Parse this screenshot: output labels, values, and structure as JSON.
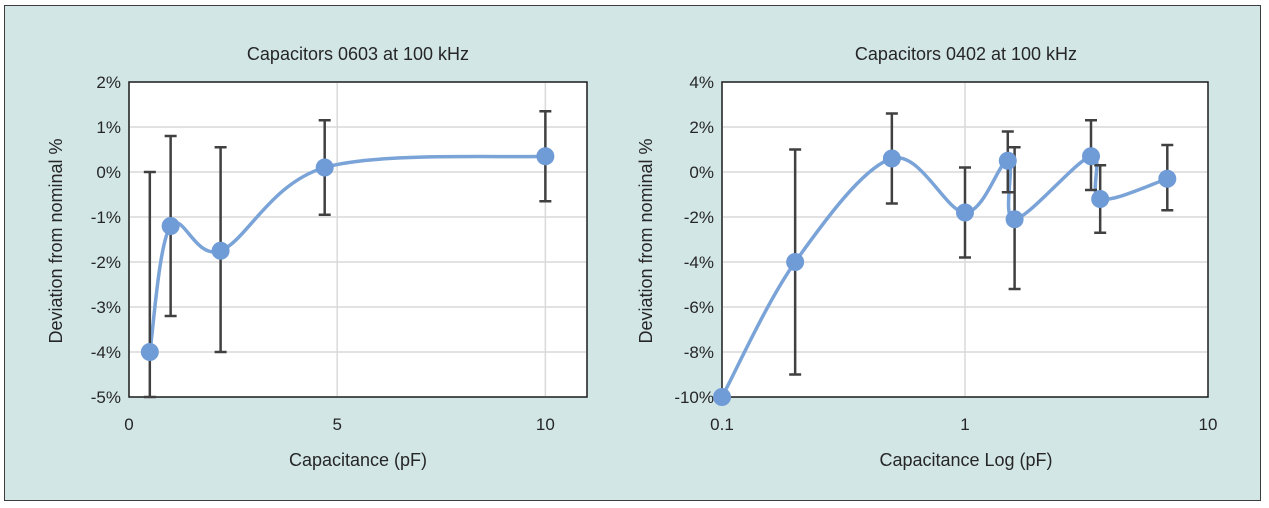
{
  "chart_data": [
    {
      "type": "scatter",
      "title": "Capacitors 0603 at 100 kHz",
      "xlabel": "Capacitance (pF)",
      "ylabel": "Deviation from nominal %",
      "xlim": [
        0,
        11
      ],
      "ylim": [
        -5,
        2
      ],
      "x_ticks": [
        0,
        5,
        10
      ],
      "y_ticks": [
        -5,
        -4,
        -3,
        -2,
        -1,
        0,
        1,
        2
      ],
      "x_scale": "linear",
      "grid": true,
      "smooth_line": true,
      "series": [
        {
          "x": [
            0.5,
            1.0,
            2.2,
            4.7,
            10.0
          ],
          "y": [
            -4.0,
            -1.2,
            -1.75,
            0.1,
            0.35
          ],
          "err_low": [
            -5.0,
            -3.2,
            -4.0,
            -0.95,
            -0.65
          ],
          "err_high": [
            0.0,
            0.8,
            0.55,
            1.15,
            1.35
          ]
        }
      ],
      "colors": {
        "line": "#7aa3d8",
        "marker": "#6f9bd6",
        "errorbar": "#404040"
      }
    },
    {
      "type": "scatter",
      "title": "Capacitors 0402 at 100 kHz",
      "xlabel": "Capacitance Log (pF)",
      "ylabel": "Deviation from nominal %",
      "xlim": [
        0.1,
        10
      ],
      "ylim": [
        -10,
        4
      ],
      "x_ticks": [
        0.1,
        1,
        10
      ],
      "y_ticks": [
        -10,
        -8,
        -6,
        -4,
        -2,
        0,
        2,
        4
      ],
      "x_scale": "log",
      "grid": true,
      "smooth_line": true,
      "series": [
        {
          "x": [
            0.1,
            0.2,
            0.5,
            1.0,
            1.5,
            1.6,
            3.3,
            3.6,
            6.8
          ],
          "y": [
            -10.0,
            -4.0,
            0.6,
            -1.8,
            0.5,
            -2.1,
            0.7,
            -1.2,
            -0.3
          ],
          "err_low": [
            null,
            -9.0,
            -1.4,
            -3.8,
            -0.9,
            -5.2,
            -0.8,
            -2.7,
            -1.7
          ],
          "err_high": [
            null,
            1.0,
            2.6,
            0.2,
            1.8,
            1.1,
            2.3,
            0.3,
            1.2
          ]
        }
      ],
      "colors": {
        "line": "#7aa3d8",
        "marker": "#6f9bd6",
        "errorbar": "#404040"
      }
    }
  ]
}
